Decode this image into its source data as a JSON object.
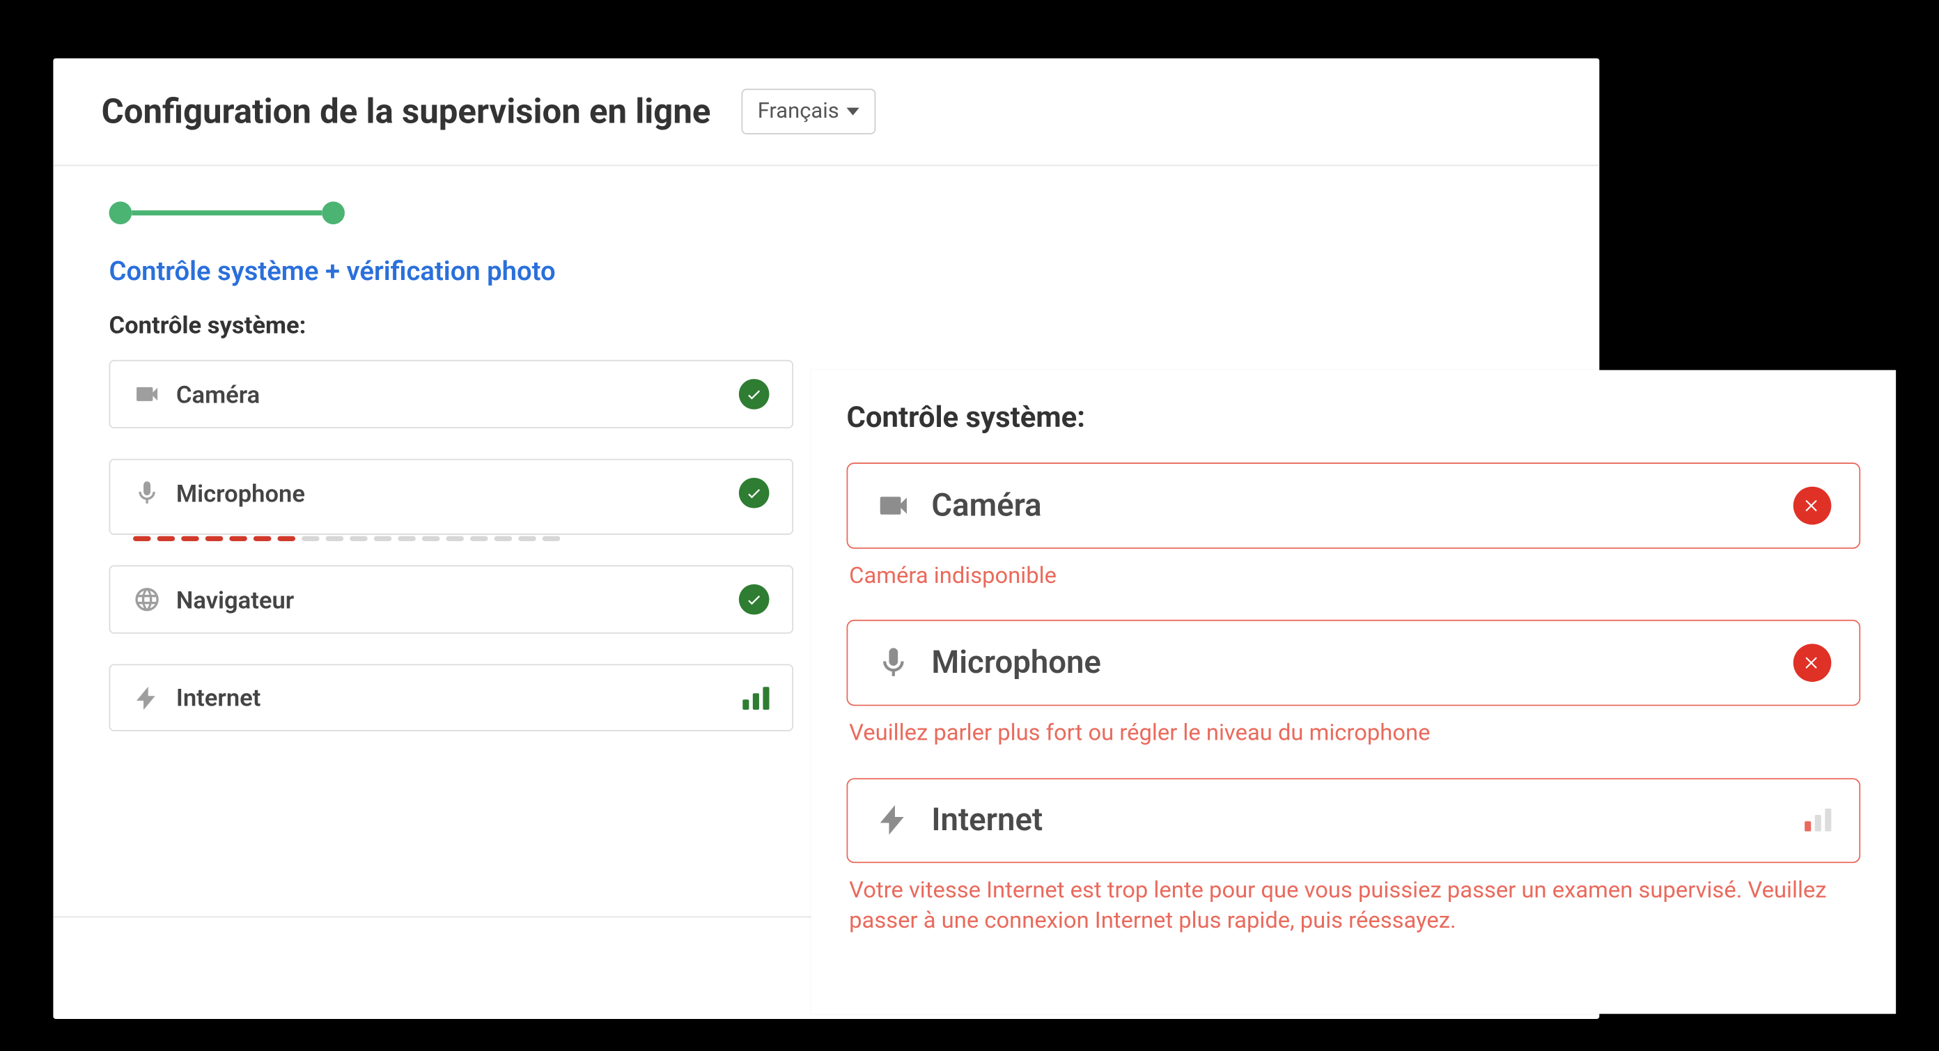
{
  "colors": {
    "accent_green": "#4bb473",
    "ok_green": "#2e7d32",
    "error_red": "#e03126",
    "error_border": "#e96a5c",
    "link_blue": "#2a6fdb",
    "mic_active": "#d13a2b",
    "icon_grey": "#9e9e9e",
    "border_grey": "#dcdcdc",
    "text_dark": "#333333"
  },
  "header": {
    "title": "Configuration de la supervision en ligne",
    "language": "Français"
  },
  "progress": {
    "steps_completed": 2,
    "step_title": "Contrôle système + vérification photo"
  },
  "left": {
    "section_label": "Contrôle système:",
    "items": [
      {
        "key": "camera",
        "icon": "camera-icon",
        "label": "Caméra",
        "status": "ok"
      },
      {
        "key": "microphone",
        "icon": "microphone-icon",
        "label": "Microphone",
        "status": "ok",
        "mic_level": {
          "active": 7,
          "total": 18
        }
      },
      {
        "key": "browser",
        "icon": "globe-icon",
        "label": "Navigateur",
        "status": "ok"
      },
      {
        "key": "internet",
        "icon": "bolt-icon",
        "label": "Internet",
        "status": "signal-good"
      }
    ]
  },
  "right": {
    "section_label": "Contrôle système:",
    "items": [
      {
        "key": "camera",
        "icon": "camera-icon",
        "label": "Caméra",
        "status": "error",
        "message": "Caméra indisponible"
      },
      {
        "key": "microphone",
        "icon": "microphone-icon",
        "label": "Microphone",
        "status": "error",
        "message": "Veuillez parler plus fort ou régler le niveau du microphone"
      },
      {
        "key": "internet",
        "icon": "bolt-icon",
        "label": "Internet",
        "status": "signal-low",
        "message": "Votre vitesse Internet est trop lente pour que vous puissiez passer un examen supervisé. Veuillez passer à une connexion Internet plus rapide, puis réessayez."
      }
    ]
  }
}
